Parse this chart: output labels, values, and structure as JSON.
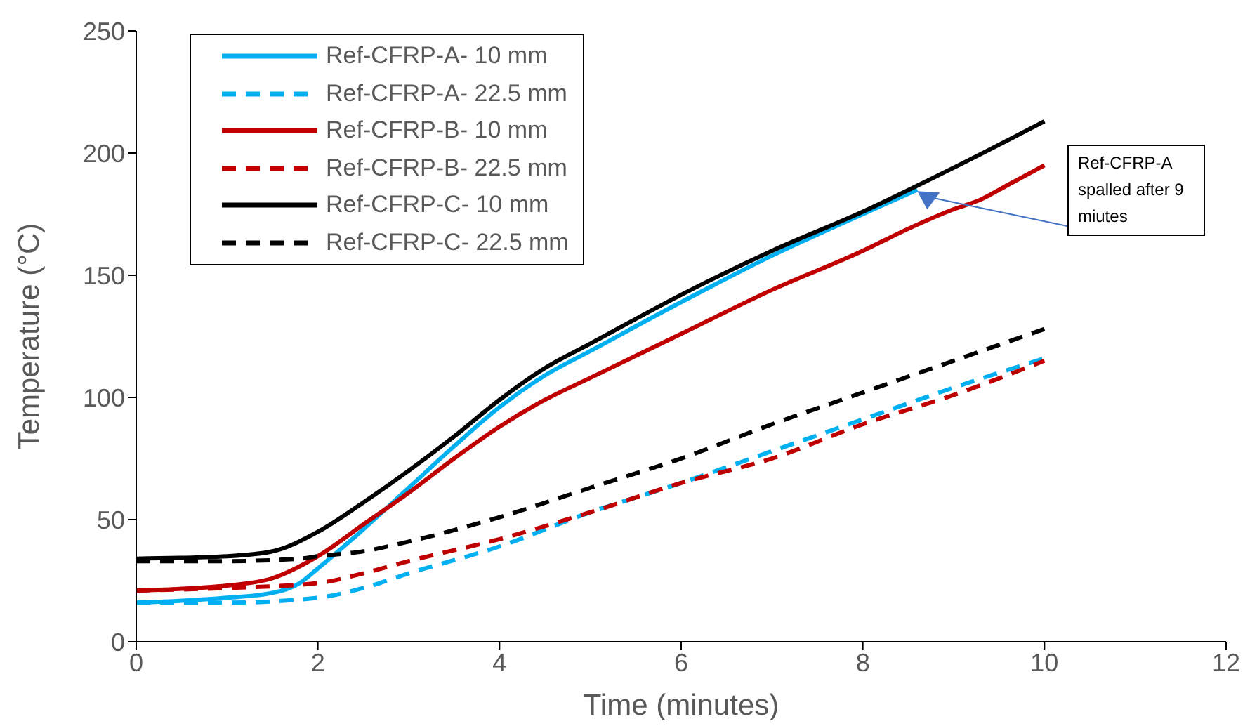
{
  "chart_data": {
    "type": "line",
    "xlabel": "Time (minutes)",
    "ylabel": "Temperature (°C)",
    "xlim": [
      0,
      12
    ],
    "xticks": [
      0,
      2,
      4,
      6,
      8,
      10,
      12
    ],
    "ylim": [
      0,
      250
    ],
    "yticks": [
      0,
      50,
      100,
      150,
      200,
      250
    ],
    "grid": false,
    "legend": "top left",
    "marker": "none",
    "series": [
      {
        "name": "Ref-CFRP-A- 10 mm",
        "color": "#00b0f0",
        "line_style": "solid",
        "x": [
          0,
          1,
          1.5,
          1.8,
          2,
          2.5,
          3,
          3.5,
          4,
          4.5,
          5,
          6,
          7,
          8,
          8.6
        ],
        "values": [
          16,
          18,
          20,
          24,
          30,
          46,
          63,
          80,
          96,
          109,
          119,
          139,
          158,
          175,
          185
        ]
      },
      {
        "name": "Ref-CFRP-A- 22.5 mm",
        "color": "#00b0f0",
        "line_style": "dashed",
        "x": [
          0,
          1,
          2,
          2.5,
          3,
          4,
          5,
          6,
          7,
          8,
          9,
          10
        ],
        "values": [
          16,
          16,
          18,
          22,
          28,
          39,
          53,
          65,
          78,
          91,
          104,
          116
        ]
      },
      {
        "name": "Ref-CFRP-B- 10 mm",
        "color": "#c00000",
        "line_style": "solid",
        "x": [
          0,
          1,
          1.5,
          2,
          2.5,
          3,
          3.5,
          4,
          4.5,
          5,
          6,
          7,
          8,
          8.5,
          9,
          9.3,
          9.6,
          10
        ],
        "values": [
          21,
          23,
          26,
          35,
          48,
          61,
          75,
          88,
          99,
          108,
          126,
          144,
          160,
          169,
          177,
          181,
          187,
          195
        ]
      },
      {
        "name": "Ref-CFRP-B- 22.5 mm",
        "color": "#c00000",
        "line_style": "dashed",
        "x": [
          0,
          1,
          2,
          2.5,
          3,
          4,
          5,
          6,
          7,
          8,
          9,
          10
        ],
        "values": [
          21,
          22,
          24,
          28,
          33,
          42,
          53,
          65,
          75,
          89,
          101,
          115
        ]
      },
      {
        "name": "Ref-CFRP-C- 10 mm",
        "color": "#000000",
        "line_style": "solid",
        "x": [
          0,
          1,
          1.5,
          2,
          2.5,
          3,
          3.5,
          4,
          4.5,
          5,
          6,
          7,
          8,
          9,
          10
        ],
        "values": [
          34,
          35,
          37,
          45,
          57,
          70,
          84,
          99,
          112,
          122,
          142,
          160,
          176,
          194,
          213
        ]
      },
      {
        "name": "Ref-CFRP-C- 22.5 mm",
        "color": "#000000",
        "line_style": "dashed",
        "x": [
          0,
          1,
          1.8,
          2,
          2.5,
          3,
          4,
          5,
          6,
          7,
          8,
          9,
          10
        ],
        "values": [
          33,
          33,
          34,
          35,
          37,
          41,
          51,
          63,
          75,
          89,
          102,
          115,
          128
        ]
      }
    ],
    "annotations": [
      "Ref-CFRP-A spalled after 9 miutes"
    ]
  }
}
